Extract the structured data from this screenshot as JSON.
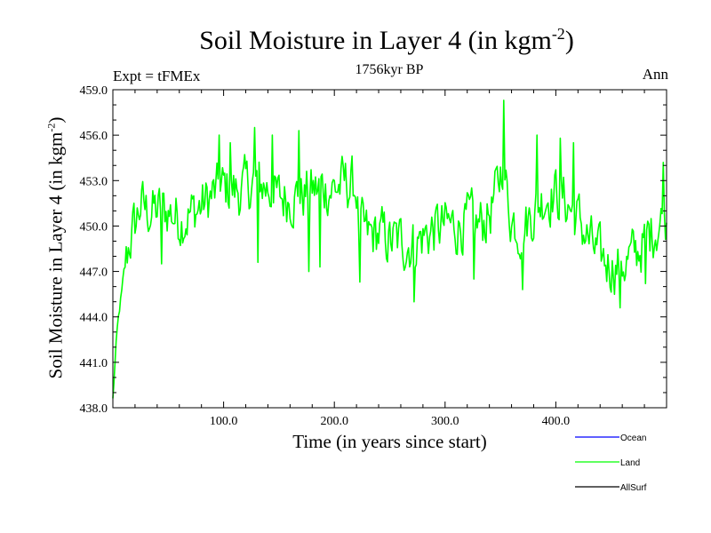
{
  "header": {
    "title_main": "Soil Moisture in Layer 4 (in kgm",
    "title_sup": "-2",
    "title_close": ")",
    "expt": "Expt = tFMEx",
    "period": "1756kyr BP",
    "season": "Ann"
  },
  "chart_data": {
    "type": "line",
    "title": "Soil Moisture in Layer 4 (in kgm-2)",
    "xlabel": "Time (in years since start)",
    "ylabel_main": "Soil Moisture in Layer 4 (in kgm",
    "ylabel_sup": "-2",
    "ylabel_close": ")",
    "xlim": [
      0,
      500
    ],
    "ylim": [
      438.0,
      459.0
    ],
    "xticks": [
      100,
      200,
      300,
      400
    ],
    "xtick_labels": [
      "100.0",
      "200.0",
      "300.0",
      "400.0"
    ],
    "yticks": [
      438,
      441,
      444,
      447,
      450,
      453,
      456,
      459
    ],
    "ytick_labels": [
      "438.0",
      "441.0",
      "444.0",
      "447.0",
      "450.0",
      "453.0",
      "456.0",
      "459.0"
    ],
    "legend": [
      {
        "name": "Ocean",
        "color": "#0000ff"
      },
      {
        "name": "Land",
        "color": "#00ff00"
      },
      {
        "name": "AllSurf",
        "color": "#000000"
      }
    ],
    "legend_position": "bottom-right",
    "series": [
      {
        "name": "Land",
        "color": "#00ff00",
        "anchors": [
          [
            0,
            438.5
          ],
          [
            2,
            441.0
          ],
          [
            4,
            443.0
          ],
          [
            6,
            444.5
          ],
          [
            8,
            445.5
          ],
          [
            10,
            446.8
          ],
          [
            15,
            449.0
          ],
          [
            20,
            450.0
          ],
          [
            25,
            451.5
          ],
          [
            30,
            451.0
          ],
          [
            40,
            451.0
          ],
          [
            50,
            451.0
          ],
          [
            60,
            450.5
          ],
          [
            70,
            450.8
          ],
          [
            80,
            451.3
          ],
          [
            90,
            452.0
          ],
          [
            100,
            452.5
          ],
          [
            110,
            452.3
          ],
          [
            120,
            452.5
          ],
          [
            130,
            453.0
          ],
          [
            140,
            452.5
          ],
          [
            150,
            451.8
          ],
          [
            160,
            452.0
          ],
          [
            170,
            452.0
          ],
          [
            180,
            452.3
          ],
          [
            190,
            452.5
          ],
          [
            200,
            452.5
          ],
          [
            210,
            452.8
          ],
          [
            220,
            452.5
          ],
          [
            222,
            450.0
          ],
          [
            230,
            449.3
          ],
          [
            240,
            449.5
          ],
          [
            250,
            449.0
          ],
          [
            260,
            449.0
          ],
          [
            270,
            448.8
          ],
          [
            280,
            449.3
          ],
          [
            290,
            449.8
          ],
          [
            300,
            450.0
          ],
          [
            310,
            450.0
          ],
          [
            320,
            450.3
          ],
          [
            330,
            450.0
          ],
          [
            340,
            450.8
          ],
          [
            348,
            452.5
          ],
          [
            352,
            454.5
          ],
          [
            356,
            452.0
          ],
          [
            360,
            450.5
          ],
          [
            370,
            449.8
          ],
          [
            380,
            451.0
          ],
          [
            390,
            452.0
          ],
          [
            400,
            452.2
          ],
          [
            410,
            451.5
          ],
          [
            420,
            450.5
          ],
          [
            430,
            449.0
          ],
          [
            440,
            447.8
          ],
          [
            450,
            447.5
          ],
          [
            460,
            447.5
          ],
          [
            470,
            448.0
          ],
          [
            480,
            449.0
          ],
          [
            490,
            450.0
          ],
          [
            500,
            450.5
          ]
        ],
        "noise_amplitude": 1.6,
        "sample_step_years": 1,
        "events": [
          [
            96,
            456.0
          ],
          [
            106,
            455.5
          ],
          [
            128,
            456.5
          ],
          [
            144,
            456.0
          ],
          [
            168,
            456.3
          ],
          [
            272,
            445.0
          ],
          [
            353,
            458.3
          ],
          [
            370,
            445.8
          ],
          [
            383,
            456.0
          ],
          [
            404,
            455.8
          ],
          [
            416,
            455.5
          ],
          [
            458,
            444.6
          ],
          [
            497,
            454.2
          ],
          [
            44,
            447.5
          ],
          [
            131,
            447.6
          ],
          [
            187,
            447.3
          ],
          [
            223,
            446.3
          ],
          [
            177,
            447.0
          ],
          [
            326,
            446.5
          ],
          [
            481,
            446.2
          ]
        ]
      }
    ]
  }
}
